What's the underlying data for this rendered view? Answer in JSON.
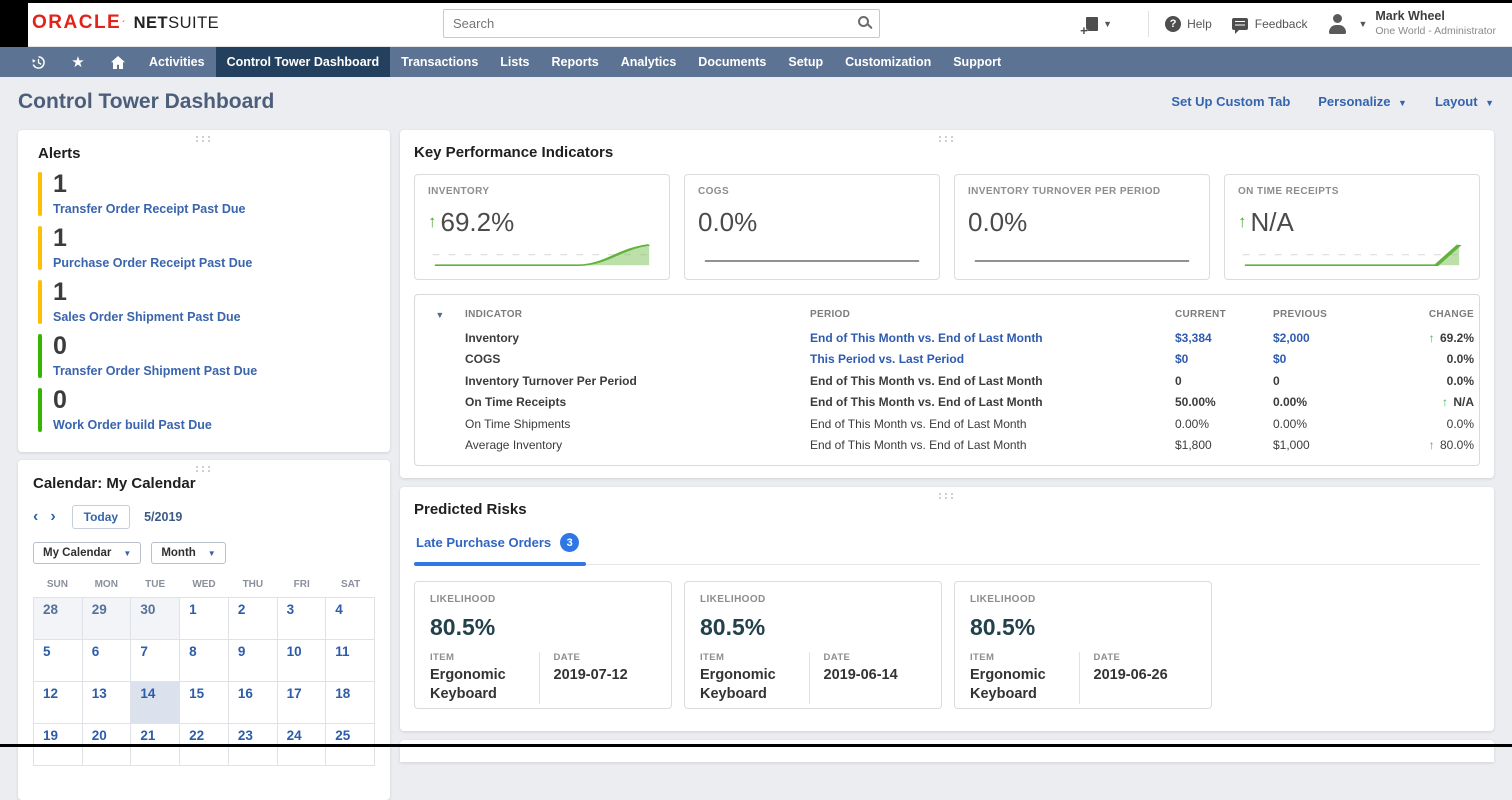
{
  "topbar": {
    "brand": {
      "oracle": "ORACLE",
      "netsuite_bold": "NET",
      "netsuite_rest": "SUITE"
    },
    "search": {
      "placeholder": "Search"
    },
    "help_label": "Help",
    "feedback_label": "Feedback",
    "user": {
      "name": "Mark Wheel",
      "role": "One World - Administrator"
    }
  },
  "nav": {
    "tabs": [
      {
        "label": "Activities",
        "active": false
      },
      {
        "label": "Control Tower Dashboard",
        "active": true
      },
      {
        "label": "Transactions",
        "active": false
      },
      {
        "label": "Lists",
        "active": false
      },
      {
        "label": "Reports",
        "active": false
      },
      {
        "label": "Analytics",
        "active": false
      },
      {
        "label": "Documents",
        "active": false
      },
      {
        "label": "Setup",
        "active": false
      },
      {
        "label": "Customization",
        "active": false
      },
      {
        "label": "Support",
        "active": false
      }
    ]
  },
  "page_header": {
    "title": "Control Tower Dashboard",
    "links": [
      {
        "label": "Set Up Custom Tab",
        "caret": false
      },
      {
        "label": "Personalize",
        "caret": true
      },
      {
        "label": "Layout",
        "caret": true
      }
    ]
  },
  "alerts": {
    "title": "Alerts",
    "items": [
      {
        "count": "1",
        "color": "#FFBE00",
        "label": "Transfer Order Receipt Past Due"
      },
      {
        "count": "1",
        "color": "#FFBE00",
        "label": "Purchase Order Receipt Past Due"
      },
      {
        "count": "1",
        "color": "#FFBE00",
        "label": "Sales Order Shipment Past Due"
      },
      {
        "count": "0",
        "color": "#35B700",
        "label": "Transfer Order Shipment Past Due"
      },
      {
        "count": "0",
        "color": "#35B700",
        "label": "Work Order build Past Due"
      }
    ]
  },
  "kpi": {
    "title": "Key Performance Indicators",
    "cards": [
      {
        "label": "INVENTORY",
        "value": "69.2%",
        "up_arrow": true,
        "trend": "up_smooth"
      },
      {
        "label": "COGS",
        "value": "0.0%",
        "up_arrow": false,
        "trend": "flat"
      },
      {
        "label": "INVENTORY TURNOVER PER PERIOD",
        "value": "0.0%",
        "up_arrow": false,
        "trend": "flat"
      },
      {
        "label": "ON TIME RECEIPTS",
        "value": "N/A",
        "up_arrow": true,
        "trend": "up_sharp"
      }
    ],
    "table": {
      "headers": [
        "INDICATOR",
        "PERIOD",
        "CURRENT",
        "PREVIOUS",
        "CHANGE"
      ],
      "rows": [
        {
          "indicator": "Inventory",
          "period": "End of This Month vs. End of Last Month",
          "current": "$3,384",
          "previous": "$2,000",
          "change": "69.2%",
          "change_up": true,
          "bold": true,
          "link": true
        },
        {
          "indicator": "COGS",
          "period": "This Period vs. Last Period",
          "current": "$0",
          "previous": "$0",
          "change": "0.0%",
          "change_up": false,
          "bold": true,
          "link": true
        },
        {
          "indicator": "Inventory Turnover Per Period",
          "period": "End of This Month vs. End of Last Month",
          "current": "0",
          "previous": "0",
          "change": "0.0%",
          "change_up": false,
          "bold": true,
          "link": false
        },
        {
          "indicator": "On Time Receipts",
          "period": "End of This Month vs. End of Last Month",
          "current": "50.00%",
          "previous": "0.00%",
          "change": "N/A",
          "change_up": true,
          "bold": true,
          "link": false
        },
        {
          "indicator": "On Time Shipments",
          "period": "End of This Month vs. End of Last Month",
          "current": "0.00%",
          "previous": "0.00%",
          "change": "0.0%",
          "change_up": false,
          "bold": false,
          "link": false
        },
        {
          "indicator": "Average Inventory",
          "period": "End of This Month vs. End of Last Month",
          "current": "$1,800",
          "previous": "$1,000",
          "change": "80.0%",
          "change_up": true,
          "bold": false,
          "link": false
        }
      ]
    }
  },
  "calendar": {
    "title": "Calendar: My Calendar",
    "today_label": "Today",
    "month_label": "5/2019",
    "calendar_select": "My Calendar",
    "view_select": "Month",
    "weekdays": [
      "SUN",
      "MON",
      "TUE",
      "WED",
      "THU",
      "FRI",
      "SAT"
    ],
    "cells": [
      {
        "day": "28",
        "muted": true
      },
      {
        "day": "29",
        "muted": true
      },
      {
        "day": "30",
        "muted": true
      },
      {
        "day": "1"
      },
      {
        "day": "2"
      },
      {
        "day": "3"
      },
      {
        "day": "4"
      },
      {
        "day": "5"
      },
      {
        "day": "6"
      },
      {
        "day": "7"
      },
      {
        "day": "8"
      },
      {
        "day": "9"
      },
      {
        "day": "10"
      },
      {
        "day": "11"
      },
      {
        "day": "12"
      },
      {
        "day": "13"
      },
      {
        "day": "14",
        "selected": true
      },
      {
        "day": "15"
      },
      {
        "day": "16"
      },
      {
        "day": "17"
      },
      {
        "day": "18"
      },
      {
        "day": "19"
      },
      {
        "day": "20"
      },
      {
        "day": "21"
      },
      {
        "day": "22"
      },
      {
        "day": "23"
      },
      {
        "day": "24"
      },
      {
        "day": "25"
      }
    ]
  },
  "risks": {
    "title": "Predicted Risks",
    "tab": {
      "label": "Late Purchase Orders",
      "count": "3"
    },
    "cards": [
      {
        "likelihood_label": "LIKELIHOOD",
        "likelihood": "80.5%",
        "item_label": "ITEM",
        "item": "Ergonomic Keyboard",
        "date_label": "DATE",
        "date": "2019-07-12"
      },
      {
        "likelihood_label": "LIKELIHOOD",
        "likelihood": "80.5%",
        "item_label": "ITEM",
        "item": "Ergonomic Keyboard",
        "date_label": "DATE",
        "date": "2019-06-14"
      },
      {
        "likelihood_label": "LIKELIHOOD",
        "likelihood": "80.5%",
        "item_label": "ITEM",
        "item": "Ergonomic Keyboard",
        "date_label": "DATE",
        "date": "2019-06-26"
      }
    ]
  },
  "colors": {
    "alert_warning": "#FFBE00",
    "alert_ok": "#35B700",
    "accent_blue": "#2E77E5",
    "link_blue": "#3464AE",
    "nav_bg": "#5D7394",
    "nav_active": "#24405F",
    "trend_green": "#61B33E",
    "change_green": "#4CAE4F",
    "likelihood_text": "#22414B",
    "oracle_red": "#E2231A"
  }
}
